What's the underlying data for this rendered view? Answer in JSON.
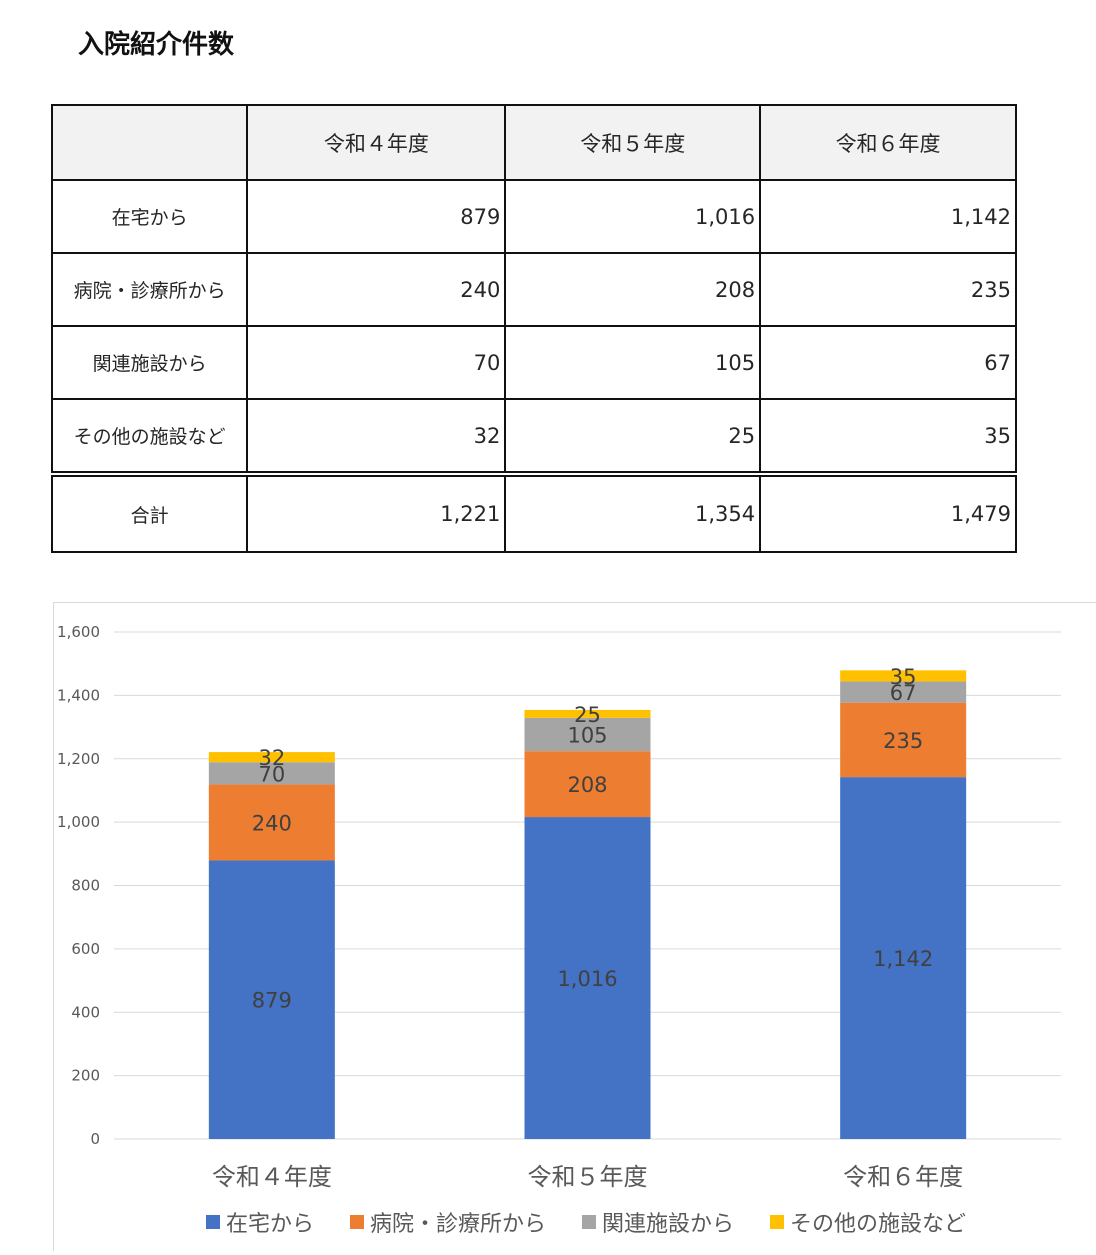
{
  "page": {
    "title": "入院紹介件数"
  },
  "table": {
    "headers": [
      "",
      "令和４年度",
      "令和５年度",
      "令和６年度"
    ],
    "rows": [
      {
        "label": "在宅から",
        "values": [
          "879",
          "1,016",
          "1,142"
        ]
      },
      {
        "label": "病院・診療所から",
        "values": [
          "240",
          "208",
          "235"
        ]
      },
      {
        "label": "関連施設から",
        "values": [
          "70",
          "105",
          "67"
        ]
      },
      {
        "label": "その他の施設など",
        "values": [
          "32",
          "25",
          "35"
        ]
      }
    ],
    "total": {
      "label": "合計",
      "values": [
        "1,221",
        "1,354",
        "1,479"
      ]
    }
  },
  "chart_data": {
    "type": "bar",
    "stacked": true,
    "categories": [
      "令和４年度",
      "令和５年度",
      "令和６年度"
    ],
    "series": [
      {
        "name": "在宅から",
        "values": [
          879,
          1016,
          1142
        ],
        "labels": [
          "879",
          "1,016",
          "1,142"
        ],
        "color": "#4472c4"
      },
      {
        "name": "病院・診療所から",
        "values": [
          240,
          208,
          235
        ],
        "labels": [
          "240",
          "208",
          "235"
        ],
        "color": "#ed7d31"
      },
      {
        "name": "関連施設から",
        "values": [
          70,
          105,
          67
        ],
        "labels": [
          "70",
          "105",
          "67"
        ],
        "color": "#a5a5a5"
      },
      {
        "name": "その他の施設など",
        "values": [
          32,
          25,
          35
        ],
        "labels": [
          "32",
          "25",
          "35"
        ],
        "color": "#ffc000"
      }
    ],
    "ylim": [
      0,
      1600
    ],
    "yticks": [
      "0",
      "200",
      "400",
      "600",
      "800",
      "1,000",
      "1,200",
      "1,400",
      "1,600"
    ],
    "grid": true,
    "legend": "bottom"
  }
}
